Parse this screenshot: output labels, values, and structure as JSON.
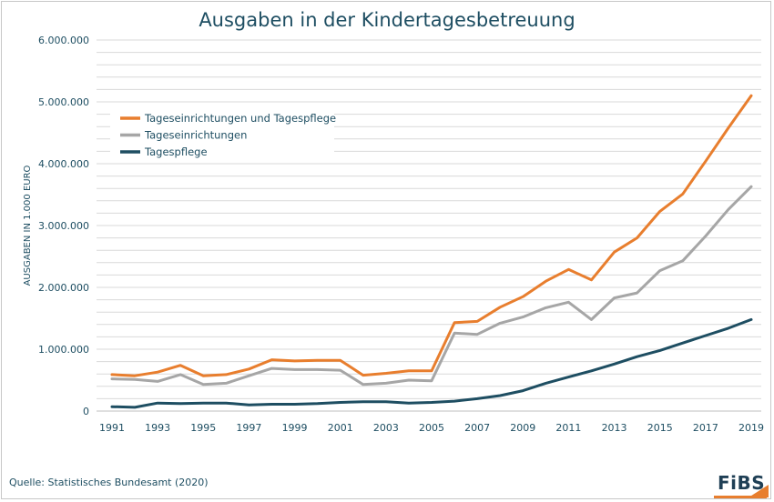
{
  "chart_data": {
    "type": "line",
    "title": "Ausgaben in der Kindertagesbetreuung",
    "ylabel": "AUSGABEN IN 1.000 EURO",
    "xlabel": "",
    "ylim": [
      0,
      6000000
    ],
    "y_ticks": [
      {
        "value": 0,
        "label": "0"
      },
      {
        "value": 1000000,
        "label": "1.000.000"
      },
      {
        "value": 2000000,
        "label": "2.000.000"
      },
      {
        "value": 3000000,
        "label": "3.000.000"
      },
      {
        "value": 4000000,
        "label": "4.000.000"
      },
      {
        "value": 5000000,
        "label": "5.000.000"
      },
      {
        "value": 6000000,
        "label": "6.000.000"
      }
    ],
    "grid_step": 200000,
    "grid": true,
    "legend_position": "top-left",
    "x": [
      1991,
      1992,
      1993,
      1994,
      1995,
      1996,
      1997,
      1998,
      1999,
      2000,
      2001,
      2002,
      2003,
      2004,
      2005,
      2006,
      2007,
      2008,
      2009,
      2010,
      2011,
      2012,
      2013,
      2014,
      2015,
      2016,
      2017,
      2018,
      2019
    ],
    "x_tick_labels": [
      "1991",
      "1993",
      "1995",
      "1997",
      "1999",
      "2001",
      "2003",
      "2005",
      "2007",
      "2009",
      "2011",
      "2013",
      "2015",
      "2017",
      "2019"
    ],
    "series": [
      {
        "name": "Tageseinrichtungen und Tagespflege",
        "color": "#e87e2e",
        "values": [
          590000,
          570000,
          630000,
          740000,
          570000,
          590000,
          680000,
          830000,
          810000,
          820000,
          820000,
          580000,
          610000,
          650000,
          650000,
          1430000,
          1450000,
          1680000,
          1850000,
          2100000,
          2290000,
          2120000,
          2570000,
          2800000,
          3230000,
          3510000,
          4040000,
          4580000,
          5100000
        ]
      },
      {
        "name": "Tageseinrichtungen",
        "color": "#a6a6a6",
        "values": [
          520000,
          510000,
          480000,
          590000,
          430000,
          450000,
          570000,
          690000,
          670000,
          670000,
          660000,
          430000,
          450000,
          500000,
          490000,
          1260000,
          1240000,
          1420000,
          1520000,
          1670000,
          1760000,
          1480000,
          1830000,
          1910000,
          2270000,
          2430000,
          2830000,
          3260000,
          3630000
        ]
      },
      {
        "name": "Tagespflege",
        "color": "#1e4e62",
        "values": [
          70000,
          60000,
          130000,
          120000,
          130000,
          130000,
          100000,
          110000,
          110000,
          120000,
          140000,
          150000,
          150000,
          130000,
          140000,
          160000,
          200000,
          250000,
          330000,
          450000,
          550000,
          650000,
          760000,
          880000,
          980000,
          1100000,
          1220000,
          1340000,
          1480000
        ]
      }
    ]
  },
  "source_note": "Quelle: Statistisches Bundesamt (2020)",
  "brand": {
    "logo_text": "FiBS",
    "accent_color": "#e87e2e",
    "text_color": "#1f3f55"
  }
}
